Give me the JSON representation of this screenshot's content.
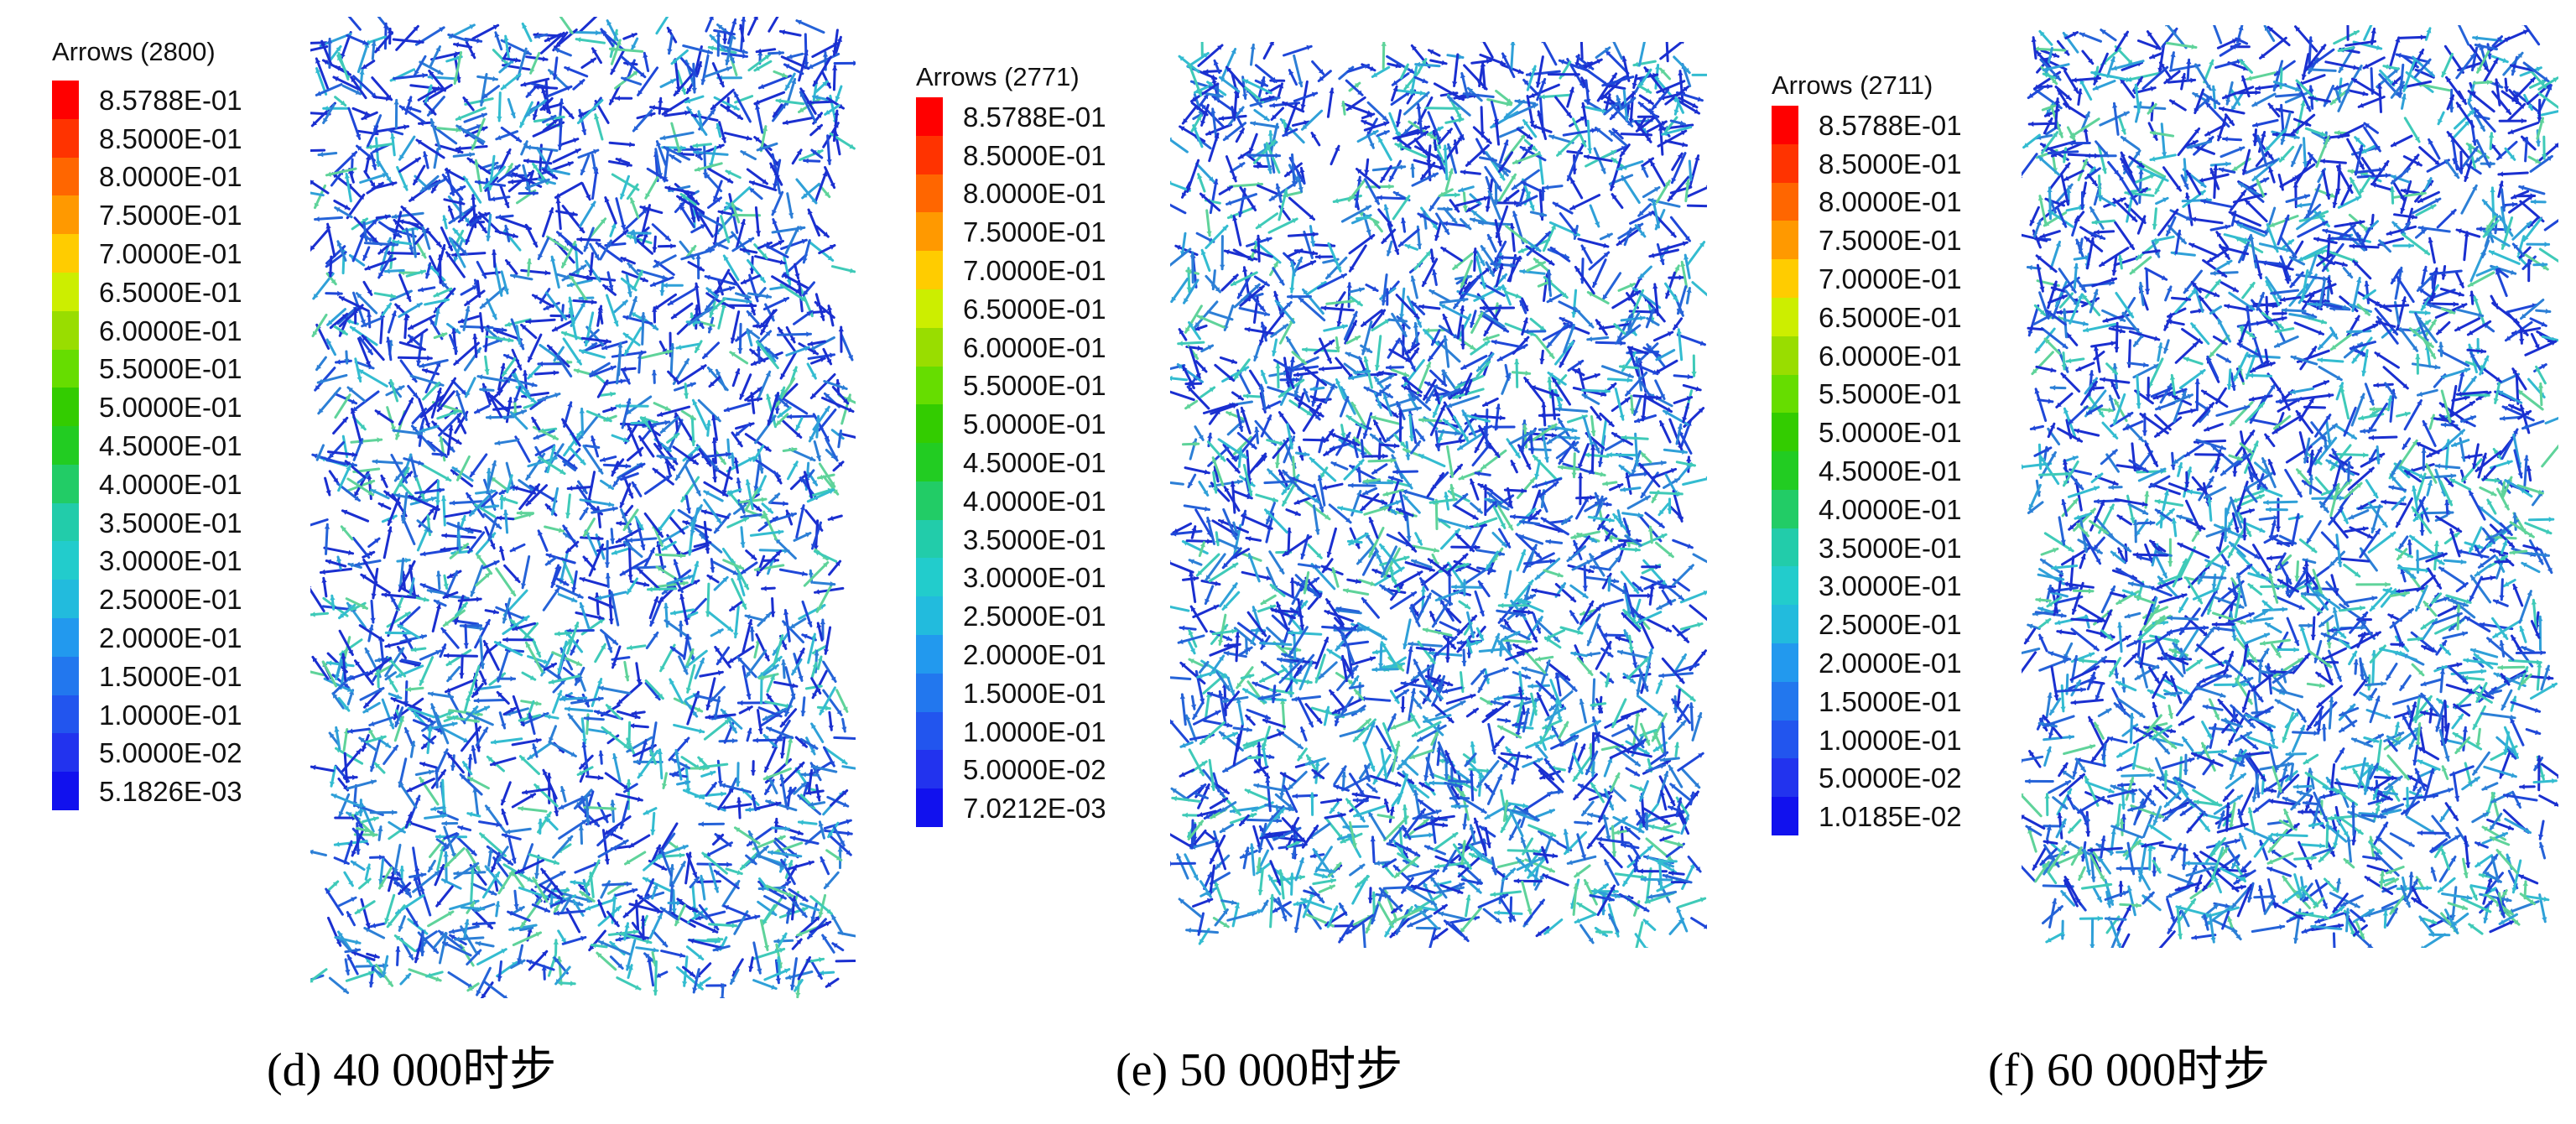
{
  "panels": [
    {
      "legend_title": "Arrows (2800)",
      "legend_labels": [
        "8.5788E-01",
        "8.5000E-01",
        "8.0000E-01",
        "7.5000E-01",
        "7.0000E-01",
        "6.5000E-01",
        "6.0000E-01",
        "5.5000E-01",
        "5.0000E-01",
        "4.5000E-01",
        "4.0000E-01",
        "3.5000E-01",
        "3.0000E-01",
        "2.5000E-01",
        "2.0000E-01",
        "1.5000E-01",
        "1.0000E-01",
        "5.0000E-02",
        "5.1826E-03"
      ],
      "caption": "(d) 40 000时步"
    },
    {
      "legend_title": "Arrows (2771)",
      "legend_labels": [
        "8.5788E-01",
        "8.5000E-01",
        "8.0000E-01",
        "7.5000E-01",
        "7.0000E-01",
        "6.5000E-01",
        "6.0000E-01",
        "5.5000E-01",
        "5.0000E-01",
        "4.5000E-01",
        "4.0000E-01",
        "3.5000E-01",
        "3.0000E-01",
        "2.5000E-01",
        "2.0000E-01",
        "1.5000E-01",
        "1.0000E-01",
        "5.0000E-02",
        "7.0212E-03"
      ],
      "caption": "(e) 50 000时步"
    },
    {
      "legend_title": "Arrows (2711)",
      "legend_labels": [
        "8.5788E-01",
        "8.5000E-01",
        "8.0000E-01",
        "7.5000E-01",
        "7.0000E-01",
        "6.5000E-01",
        "6.0000E-01",
        "5.5000E-01",
        "5.0000E-01",
        "4.5000E-01",
        "4.0000E-01",
        "3.5000E-01",
        "3.0000E-01",
        "2.5000E-01",
        "2.0000E-01",
        "1.5000E-01",
        "1.0000E-01",
        "5.0000E-02",
        "1.0185E-02"
      ],
      "caption": "(f) 60 000时步"
    }
  ],
  "colorbar_colors": [
    "#ff0000",
    "#ff3300",
    "#ff6600",
    "#ff9900",
    "#ffcc00",
    "#ccee00",
    "#99dd00",
    "#66dd00",
    "#33cc00",
    "#22cc22",
    "#22cc66",
    "#22ccaa",
    "#22cccc",
    "#22bbdd",
    "#2299ee",
    "#2277ee",
    "#2255ee",
    "#2233ee",
    "#1111ee"
  ],
  "arrow_palette": [
    "#1a2fd0",
    "#1f47d8",
    "#2563d8",
    "#2c7fd6",
    "#2fa0d8",
    "#33bcd0",
    "#3fcab8",
    "#5fd39a"
  ]
}
